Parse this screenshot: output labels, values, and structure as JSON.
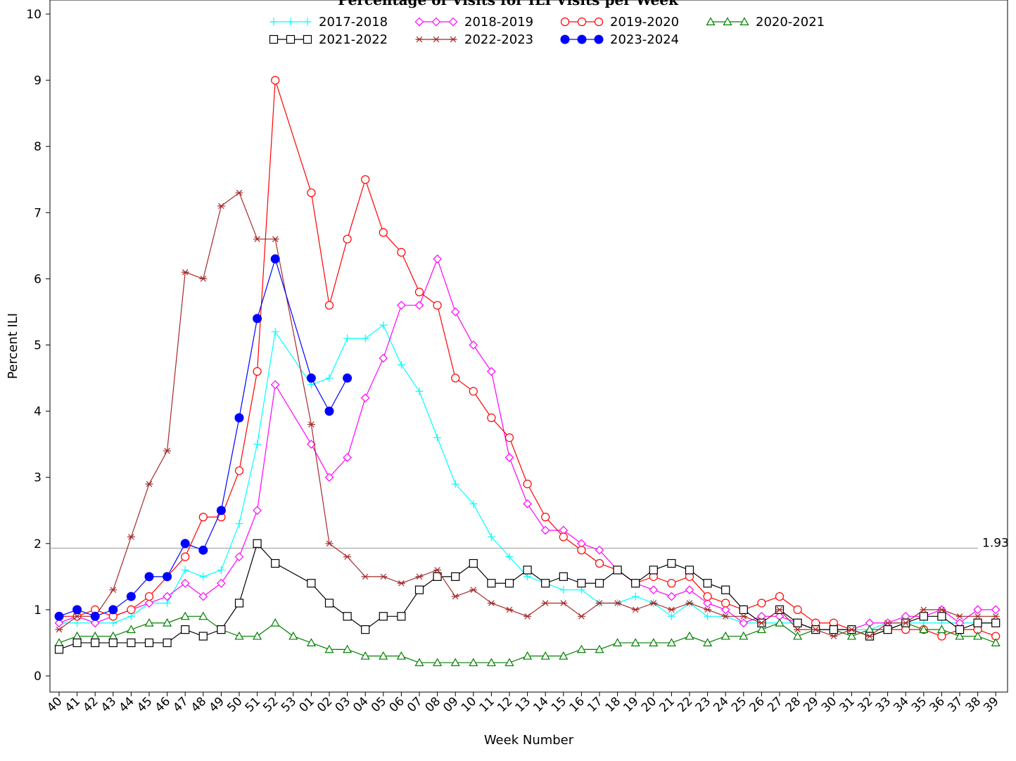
{
  "chart_data": {
    "type": "line",
    "title": "Percentage of Visits for ILI Visits per Week",
    "xlabel": "Week Number",
    "ylabel": "Percent ILI",
    "ylim": [
      0,
      10
    ],
    "y_ticks": [
      "0",
      "1",
      "2",
      "3",
      "4",
      "5",
      "6",
      "7",
      "8",
      "9",
      "10"
    ],
    "categories": [
      "40",
      "41",
      "42",
      "43",
      "44",
      "45",
      "46",
      "47",
      "48",
      "49",
      "50",
      "51",
      "52",
      "53",
      "01",
      "02",
      "03",
      "04",
      "05",
      "06",
      "07",
      "08",
      "09",
      "10",
      "11",
      "12",
      "13",
      "14",
      "15",
      "16",
      "17",
      "18",
      "19",
      "20",
      "21",
      "22",
      "23",
      "24",
      "25",
      "26",
      "27",
      "28",
      "29",
      "30",
      "31",
      "32",
      "33",
      "34",
      "35",
      "36",
      "37",
      "38",
      "39"
    ],
    "baseline": {
      "value": 1.93,
      "label": "1.93"
    },
    "legend_position": "top",
    "series": [
      {
        "name": "2017-2018",
        "color": "#00ffff",
        "marker": "plus",
        "values": [
          0.8,
          0.8,
          0.8,
          0.8,
          0.9,
          1.1,
          1.1,
          1.6,
          1.5,
          1.6,
          2.3,
          3.5,
          5.2,
          null,
          4.4,
          4.5,
          5.1,
          5.1,
          5.3,
          4.7,
          4.3,
          3.6,
          2.9,
          2.6,
          2.1,
          1.8,
          1.5,
          1.4,
          1.3,
          1.3,
          1.1,
          1.1,
          1.2,
          1.1,
          0.9,
          1.1,
          0.9,
          0.9,
          0.8,
          0.8,
          0.8,
          0.8,
          0.7,
          0.7,
          0.7,
          0.7,
          0.8,
          0.8,
          0.8,
          0.8,
          0.8,
          0.8,
          0.8
        ]
      },
      {
        "name": "2018-2019",
        "color": "#ff00ff",
        "marker": "diamond",
        "values": [
          0.8,
          0.9,
          0.8,
          0.9,
          1.0,
          1.1,
          1.2,
          1.4,
          1.2,
          1.4,
          1.8,
          2.5,
          4.4,
          null,
          3.5,
          3.0,
          3.3,
          4.2,
          4.8,
          5.6,
          5.6,
          6.3,
          5.5,
          5.0,
          4.6,
          3.3,
          2.6,
          2.2,
          2.2,
          2.0,
          1.9,
          1.6,
          1.4,
          1.3,
          1.2,
          1.3,
          1.1,
          1.0,
          0.8,
          0.9,
          0.9,
          0.8,
          0.7,
          0.7,
          0.7,
          0.8,
          0.8,
          0.9,
          0.9,
          1.0,
          0.8,
          1.0,
          1.0
        ]
      },
      {
        "name": "2019-2020",
        "color": "#ff0000",
        "marker": "circle",
        "values": [
          0.9,
          0.9,
          1.0,
          0.9,
          1.0,
          1.2,
          1.5,
          1.8,
          2.4,
          2.4,
          3.1,
          4.6,
          9.0,
          null,
          7.3,
          5.6,
          6.6,
          7.5,
          6.7,
          6.4,
          5.8,
          5.6,
          4.5,
          4.3,
          3.9,
          3.6,
          2.9,
          2.4,
          2.1,
          1.9,
          1.7,
          1.6,
          1.4,
          1.5,
          1.4,
          1.5,
          1.2,
          1.1,
          1.0,
          1.1,
          1.2,
          1.0,
          0.8,
          0.8,
          0.7,
          0.6,
          0.7,
          0.7,
          0.7,
          0.6,
          0.7,
          0.7,
          0.6
        ]
      },
      {
        "name": "2020-2021",
        "color": "#008000",
        "marker": "triangle",
        "values": [
          0.5,
          0.6,
          0.6,
          0.6,
          0.7,
          0.8,
          0.8,
          0.9,
          0.9,
          0.7,
          0.6,
          0.6,
          0.8,
          0.6,
          0.5,
          0.4,
          0.4,
          0.3,
          0.3,
          0.3,
          0.2,
          0.2,
          0.2,
          0.2,
          0.2,
          0.2,
          0.3,
          0.3,
          0.3,
          0.4,
          0.4,
          0.5,
          0.5,
          0.5,
          0.5,
          0.6,
          0.5,
          0.6,
          0.6,
          0.7,
          0.8,
          0.6,
          0.7,
          0.7,
          0.6,
          0.7,
          0.7,
          0.8,
          0.7,
          0.7,
          0.6,
          0.6,
          0.5
        ]
      },
      {
        "name": "2021-2022",
        "color": "#000000",
        "marker": "square",
        "values": [
          0.4,
          0.5,
          0.5,
          0.5,
          0.5,
          0.5,
          0.5,
          0.7,
          0.6,
          0.7,
          1.1,
          2.0,
          1.7,
          null,
          1.4,
          1.1,
          0.9,
          0.7,
          0.9,
          0.9,
          1.3,
          1.5,
          1.5,
          1.7,
          1.4,
          1.4,
          1.6,
          1.4,
          1.5,
          1.4,
          1.4,
          1.6,
          1.4,
          1.6,
          1.7,
          1.6,
          1.4,
          1.3,
          1.0,
          0.8,
          1.0,
          0.8,
          0.7,
          0.7,
          0.7,
          0.6,
          0.7,
          0.8,
          0.9,
          0.9,
          0.7,
          0.8,
          0.8
        ]
      },
      {
        "name": "2022-2023",
        "color": "#a52a2a",
        "marker": "star",
        "values": [
          0.7,
          0.9,
          0.9,
          1.3,
          2.1,
          2.9,
          3.4,
          6.1,
          6.0,
          7.1,
          7.3,
          6.6,
          6.6,
          null,
          3.8,
          2.0,
          1.8,
          1.5,
          1.5,
          1.4,
          1.5,
          1.6,
          1.2,
          1.3,
          1.1,
          1.0,
          0.9,
          1.1,
          1.1,
          0.9,
          1.1,
          1.1,
          1.0,
          1.1,
          1.0,
          1.1,
          1.0,
          0.9,
          0.9,
          0.8,
          1.0,
          0.7,
          0.7,
          0.6,
          0.7,
          0.6,
          0.8,
          0.8,
          1.0,
          1.0,
          0.9,
          0.9,
          0.9
        ]
      },
      {
        "name": "2023-2024",
        "color": "#0000ff",
        "marker": "dot",
        "values": [
          0.9,
          1.0,
          0.9,
          1.0,
          1.2,
          1.5,
          1.5,
          2.0,
          1.9,
          2.5,
          3.9,
          5.4,
          6.3,
          null,
          4.5,
          4.0,
          4.5,
          null,
          null,
          null,
          null,
          null,
          null,
          null,
          null,
          null,
          null,
          null,
          null,
          null,
          null,
          null,
          null,
          null,
          null,
          null,
          null,
          null,
          null,
          null,
          null,
          null,
          null,
          null,
          null,
          null,
          null,
          null,
          null,
          null,
          null,
          null,
          null
        ]
      }
    ]
  }
}
